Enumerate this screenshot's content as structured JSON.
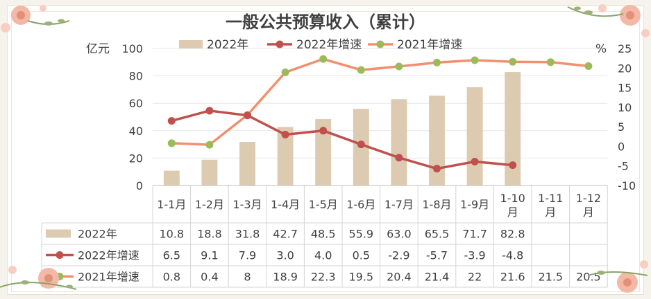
{
  "chart_data": {
    "type": "bar",
    "title": "一般公共预算收入（累计）",
    "categories": [
      "1-1月",
      "1-2月",
      "1-3月",
      "1-4月",
      "1-5月",
      "1-6月",
      "1-7月",
      "1-8月",
      "1-9月",
      "1-10月",
      "1-11月",
      "1-12月"
    ],
    "left_axis": {
      "unit": "亿元",
      "ylim": [
        0,
        100
      ],
      "ticks": [
        "0",
        "20",
        "40",
        "60",
        "80",
        "100"
      ]
    },
    "right_axis": {
      "unit": "%",
      "ylim": [
        -10,
        25
      ],
      "ticks": [
        "-10",
        "-5",
        "0",
        "5",
        "10",
        "15",
        "20",
        "25"
      ]
    },
    "series": [
      {
        "name": "2022年",
        "type": "bar",
        "axis": "left",
        "color": "#dccbb0",
        "values": [
          10.8,
          18.8,
          31.8,
          42.7,
          48.5,
          55.9,
          63.0,
          65.5,
          71.7,
          82.8,
          null,
          null
        ],
        "labels": [
          "10.8",
          "18.8",
          "31.8",
          "42.7",
          "48.5",
          "55.9",
          "63.0",
          "65.5",
          "71.7",
          "82.8",
          "",
          ""
        ]
      },
      {
        "name": "2022年增速",
        "type": "line",
        "axis": "right",
        "color": "#c0504d",
        "marker_color": "#c0504d",
        "values": [
          6.5,
          9.1,
          7.9,
          3.0,
          4.0,
          0.5,
          -2.9,
          -5.7,
          -3.9,
          -4.8,
          null,
          null
        ],
        "labels": [
          "6.5",
          "9.1",
          "7.9",
          "3.0",
          "4.0",
          "0.5",
          "-2.9",
          "-5.7",
          "-3.9",
          "-4.8",
          "",
          ""
        ]
      },
      {
        "name": "2021年增速",
        "type": "line",
        "axis": "right",
        "color": "#f0906e",
        "marker_color": "#9bbb59",
        "values": [
          0.8,
          0.4,
          8,
          18.9,
          22.3,
          19.5,
          20.4,
          21.4,
          22,
          21.6,
          21.5,
          20.5
        ],
        "labels": [
          "0.8",
          "0.4",
          "8",
          "18.9",
          "22.3",
          "19.5",
          "20.4",
          "21.4",
          "22",
          "21.6",
          "21.5",
          "20.5"
        ]
      }
    ],
    "grid": true,
    "legend": "top",
    "data_table": true
  }
}
